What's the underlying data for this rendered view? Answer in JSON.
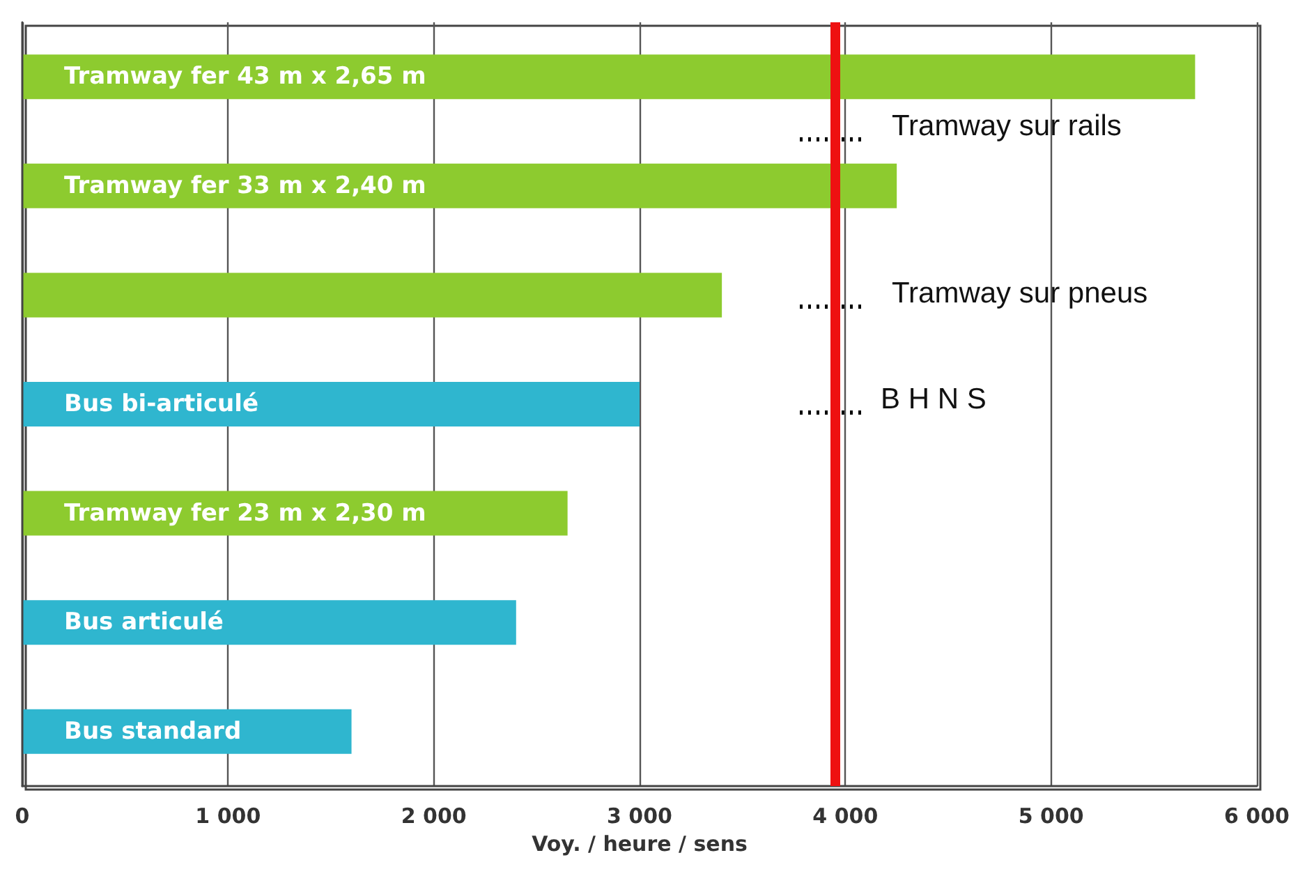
{
  "chart_data": {
    "type": "bar",
    "orientation": "horizontal",
    "xlabel": "Voy. / heure / sens",
    "categories": [
      "Tramway fer 43 m x 2,65 m",
      "Tramway fer 33 m x 2,40 m",
      null,
      "Bus bi-articulé",
      "Tramway fer 23 m x 2,30 m",
      "Bus articulé",
      "Bus standard"
    ],
    "values": [
      5700,
      4250,
      3400,
      3000,
      2650,
      2400,
      1600
    ],
    "colors": [
      "#8dcb2f",
      "#8dcb2f",
      "#8dcb2f",
      "#2fb6cf",
      "#8dcb2f",
      "#2fb6cf",
      "#2fb6cf"
    ],
    "xlim": [
      0,
      6000
    ],
    "xticks": [
      0,
      1000,
      2000,
      3000,
      4000,
      5000,
      6000
    ],
    "grid": "x",
    "ref_lines": [
      {
        "axis": "x",
        "value": 3950,
        "color": "#ee1111"
      }
    ],
    "annotations": [
      "Tramway sur rails",
      "Tramway sur pneus",
      "B H N S"
    ]
  }
}
